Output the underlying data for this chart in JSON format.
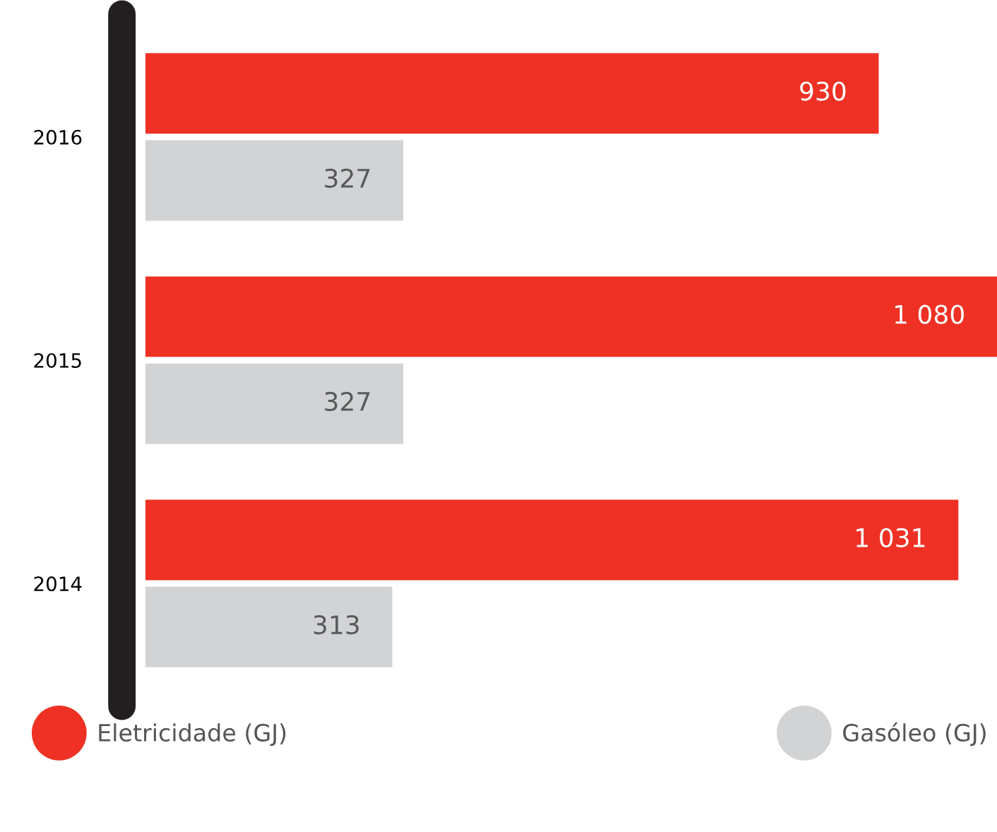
{
  "chart_data": {
    "type": "bar",
    "orientation": "horizontal",
    "categories": [
      "2016",
      "2015",
      "2014"
    ],
    "series": [
      {
        "name": "Eletricidade (GJ)",
        "color": "#ee3124",
        "values": [
          930,
          1080,
          1031
        ],
        "value_labels": [
          "930",
          "1 080",
          "1 031"
        ]
      },
      {
        "name": "Gasóleo (GJ)",
        "color": "#d1d3d4",
        "values": [
          327,
          327,
          313
        ],
        "value_labels": [
          "327",
          "327",
          "313"
        ]
      }
    ],
    "xlim": [
      0,
      1080
    ],
    "tick_labels": "y",
    "grid": false,
    "legend": "bottom"
  }
}
